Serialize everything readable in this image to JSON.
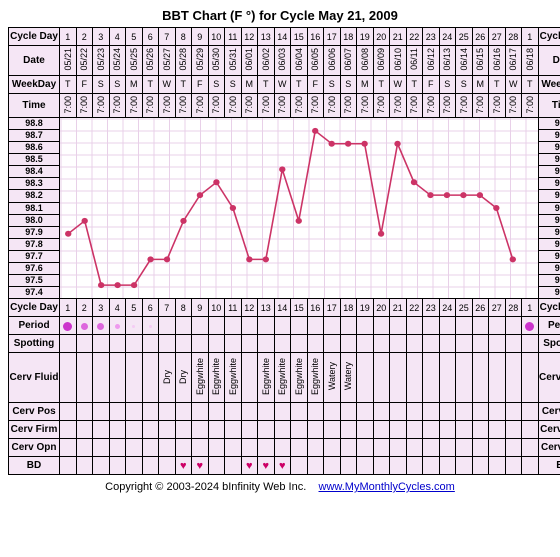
{
  "title": "BBT Chart (F °) for Cycle May 21, 2009",
  "labels": {
    "cycleDay": "Cycle Day",
    "date": "Date",
    "weekday": "WeekDay",
    "time": "Time",
    "period": "Period",
    "spotting": "Spotting",
    "cervFluid": "Cerv Fluid",
    "cervPos": "Cerv Pos",
    "cervFirm": "Cerv Firm",
    "cervOpn": "Cerv Opn",
    "bd": "BD"
  },
  "cycleDays": [
    1,
    2,
    3,
    4,
    5,
    6,
    7,
    8,
    9,
    10,
    11,
    12,
    13,
    14,
    15,
    16,
    17,
    18,
    19,
    20,
    21,
    22,
    23,
    24,
    25,
    26,
    27,
    28,
    1
  ],
  "dates": [
    "05/21",
    "05/22",
    "05/23",
    "05/24",
    "05/25",
    "05/26",
    "05/27",
    "05/28",
    "05/29",
    "05/30",
    "05/31",
    "06/01",
    "06/02",
    "06/03",
    "06/04",
    "06/05",
    "06/06",
    "06/07",
    "06/08",
    "06/09",
    "06/10",
    "06/11",
    "06/12",
    "06/13",
    "06/14",
    "06/15",
    "06/16",
    "06/17",
    "06/18"
  ],
  "weekdays": [
    "T",
    "F",
    "S",
    "S",
    "M",
    "T",
    "W",
    "T",
    "F",
    "S",
    "S",
    "M",
    "T",
    "W",
    "T",
    "F",
    "S",
    "S",
    "M",
    "T",
    "W",
    "T",
    "F",
    "S",
    "S",
    "M",
    "T",
    "W",
    "T"
  ],
  "times": [
    "7:00",
    "7:00",
    "7:00",
    "7:00",
    "7:00",
    "7:00",
    "7:00",
    "7:00",
    "7:00",
    "7:00",
    "7:00",
    "7:00",
    "7:00",
    "7:00",
    "7:00",
    "7:00",
    "7:00",
    "7:00",
    "7:00",
    "7:00",
    "7:00",
    "7:00",
    "7:00",
    "7:00",
    "7:00",
    "7:00",
    "7:00",
    "7:00",
    "7:00"
  ],
  "tempScale": [
    "98.8",
    "98.7",
    "98.6",
    "98.5",
    "98.4",
    "98.3",
    "98.2",
    "98.1",
    "98.0",
    "97.9",
    "97.8",
    "97.7",
    "97.6",
    "97.5",
    "97.4"
  ],
  "temps": [
    97.9,
    98.0,
    97.5,
    97.5,
    97.5,
    97.7,
    97.7,
    98.0,
    98.2,
    98.3,
    98.1,
    97.7,
    97.7,
    98.4,
    98.0,
    98.7,
    98.6,
    98.6,
    98.6,
    97.9,
    98.6,
    98.3,
    98.2,
    98.2,
    98.2,
    98.2,
    98.1,
    97.7,
    null
  ],
  "chart": {
    "ymin": 97.4,
    "ymax": 98.8,
    "line_color": "#cc3366",
    "point_color": "#cc3366",
    "point_radius": 3,
    "line_width": 1.5,
    "grid_color": "#e8d0e8",
    "background": "#ffffff"
  },
  "period": [
    "heavy",
    "med",
    "med",
    "light",
    "spot",
    "spot",
    "",
    "",
    "",
    "",
    "",
    "",
    "",
    "",
    "",
    "",
    "",
    "",
    "",
    "",
    "",
    "",
    "",
    "",
    "",
    "",
    "",
    "",
    "heavy"
  ],
  "cervFluid": [
    "",
    "",
    "",
    "",
    "",
    "",
    "Dry",
    "Dry",
    "Eggwhite",
    "Eggwhite",
    "Eggwhite",
    "",
    "Eggwhite",
    "Eggwhite",
    "Eggwhite",
    "Eggwhite",
    "Watery",
    "Watery",
    "",
    "",
    "",
    "",
    "",
    "",
    "",
    "",
    "",
    "",
    ""
  ],
  "bd": [
    false,
    false,
    false,
    false,
    false,
    false,
    false,
    true,
    true,
    false,
    false,
    true,
    true,
    true,
    false,
    false,
    false,
    false,
    false,
    false,
    false,
    false,
    false,
    false,
    false,
    false,
    false,
    false,
    false
  ],
  "footer": {
    "copyright": "Copyright © 2003-2024 bInfinity Web Inc.",
    "link": "www.MyMonthlyCycles.com"
  }
}
